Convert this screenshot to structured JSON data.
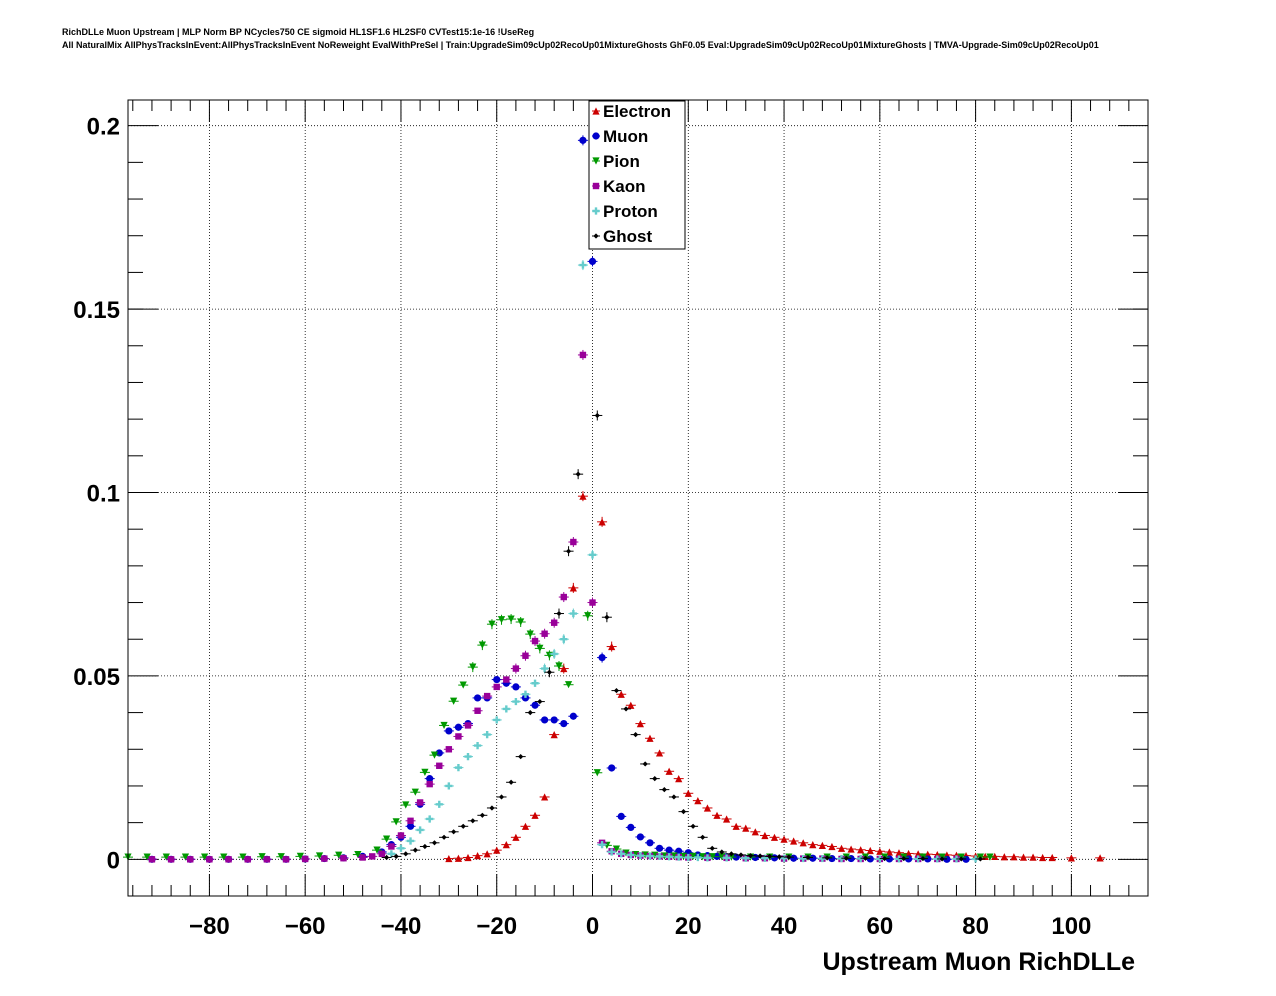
{
  "header": {
    "title_line1": "RichDLLe Muon Upstream | MLP Norm BP NCycles750 CE sigmoid HL1SF1.6 HL2SF0 CVTest15:1e-16 !UseReg",
    "title_line2": "All NaturalMix AllPhysTracksInEvent:AllPhysTracksInEvent NoReweight EvalWithPreSel | Train:UpgradeSim09cUp02RecoUp01MixtureGhosts GhF0.05 Eval:UpgradeSim09cUp02RecoUp01MixtureGhosts | TMVA-Upgrade-Sim09cUp02RecoUp01"
  },
  "chart_data": {
    "type": "scatter",
    "title": "RichDLLe Muon Upstream",
    "xlabel": "Upstream Muon RichDLLe",
    "ylabel": "",
    "xlim": [
      -97,
      116
    ],
    "ylim": [
      -0.01,
      0.207
    ],
    "grid": true,
    "legend_position": "top-center",
    "x_ticks": [
      -80,
      -60,
      -40,
      -20,
      0,
      20,
      40,
      60,
      80,
      100
    ],
    "x_tick_labels": [
      "−80",
      "−60",
      "−40",
      "−20",
      "0",
      "20",
      "40",
      "60",
      "80",
      "100"
    ],
    "y_ticks": [
      0,
      0.05,
      0.1,
      0.15,
      0.2
    ],
    "y_tick_labels": [
      "0",
      "0.05",
      "0.1",
      "0.15",
      "0.2"
    ],
    "series": [
      {
        "name": "Electron",
        "color": "#cc0000",
        "marker": "triangle-up",
        "x": [
          -30,
          -28,
          -26,
          -24,
          -22,
          -20,
          -18,
          -16,
          -14,
          -12,
          -10,
          -8,
          -6,
          -4,
          -2,
          2,
          4,
          6,
          8,
          10,
          12,
          14,
          16,
          18,
          20,
          22,
          24,
          26,
          28,
          30,
          32,
          34,
          36,
          38,
          40,
          42,
          44,
          46,
          48,
          50,
          52,
          54,
          56,
          58,
          60,
          62,
          64,
          66,
          68,
          70,
          72,
          74,
          76,
          78,
          80,
          82,
          84,
          86,
          88,
          90,
          92,
          94,
          96,
          100,
          106
        ],
        "y": [
          0.0002,
          0.0003,
          0.0005,
          0.001,
          0.0015,
          0.0025,
          0.004,
          0.006,
          0.009,
          0.012,
          0.017,
          0.034,
          0.052,
          0.074,
          0.099,
          0.092,
          0.058,
          0.045,
          0.042,
          0.037,
          0.033,
          0.029,
          0.024,
          0.022,
          0.018,
          0.016,
          0.014,
          0.012,
          0.011,
          0.009,
          0.0085,
          0.0075,
          0.0065,
          0.006,
          0.0055,
          0.005,
          0.0045,
          0.004,
          0.0038,
          0.0035,
          0.003,
          0.0028,
          0.0026,
          0.0024,
          0.0022,
          0.002,
          0.0018,
          0.0016,
          0.0015,
          0.0014,
          0.0013,
          0.0012,
          0.0011,
          0.001,
          0.0009,
          0.0008,
          0.0008,
          0.0007,
          0.0007,
          0.0006,
          0.0006,
          0.0005,
          0.0005,
          0.0004,
          0.0004
        ]
      },
      {
        "name": "Muon",
        "color": "#0000cc",
        "marker": "circle",
        "x": [
          -92,
          -88,
          -84,
          -80,
          -76,
          -72,
          -68,
          -64,
          -60,
          -56,
          -52,
          -48,
          -44,
          -42,
          -40,
          -38,
          -36,
          -34,
          -32,
          -30,
          -28,
          -26,
          -24,
          -22,
          -20,
          -18,
          -16,
          -14,
          -12,
          -10,
          -8,
          -6,
          -4,
          -2,
          0,
          2,
          4,
          6,
          8,
          10,
          12,
          14,
          16,
          18,
          20,
          22,
          24,
          26,
          28,
          30,
          34,
          38,
          42,
          46,
          50,
          54,
          58,
          62,
          66,
          70,
          74,
          78
        ],
        "y": [
          0,
          0,
          0,
          0,
          0,
          0,
          0,
          0,
          0.0001,
          0.0002,
          0.0004,
          0.0008,
          0.002,
          0.004,
          0.006,
          0.009,
          0.015,
          0.022,
          0.029,
          0.035,
          0.036,
          0.037,
          0.044,
          0.044,
          0.049,
          0.048,
          0.047,
          0.044,
          0.042,
          0.038,
          0.038,
          0.037,
          0.039,
          0.196,
          0.163,
          0.055,
          0.0249,
          0.0117,
          0.0087,
          0.0061,
          0.0045,
          0.003,
          0.0025,
          0.0022,
          0.0018,
          0.0012,
          0.001,
          0.0008,
          0.0007,
          0.0006,
          0.0005,
          0.0004,
          0.0003,
          0.0003,
          0.0002,
          0.0002,
          0.0001,
          0.0001,
          0.0001,
          0.0001,
          0,
          0
        ]
      },
      {
        "name": "Pion",
        "color": "#009900",
        "marker": "triangle-down",
        "x": [
          -97,
          -93,
          -89,
          -85,
          -81,
          -77,
          -73,
          -69,
          -65,
          -61,
          -57,
          -53,
          -49,
          -45,
          -43,
          -41,
          -39,
          -37,
          -35,
          -33,
          -31,
          -29,
          -27,
          -25,
          -23,
          -21,
          -19,
          -17,
          -15,
          -13,
          -11,
          -9,
          -7,
          -5,
          -1,
          1,
          3,
          5,
          7,
          9,
          11,
          13,
          15,
          17,
          19,
          21,
          23,
          25,
          27,
          29,
          33,
          37,
          41,
          45,
          49,
          53,
          57,
          61,
          65,
          69,
          73,
          77,
          81,
          83
        ],
        "y": [
          0.0006,
          0.0006,
          0.0006,
          0.0006,
          0.0006,
          0.0006,
          0.0006,
          0.0007,
          0.0007,
          0.0008,
          0.0009,
          0.0011,
          0.0013,
          0.0025,
          0.0055,
          0.0102,
          0.0148,
          0.0183,
          0.0237,
          0.0284,
          0.0365,
          0.0431,
          0.0475,
          0.0524,
          0.0584,
          0.0641,
          0.0653,
          0.0655,
          0.0647,
          0.0614,
          0.0575,
          0.0556,
          0.0527,
          0.0476,
          0.0664,
          0.0236,
          0.0038,
          0.0028,
          0.0017,
          0.0013,
          0.0012,
          0.0011,
          0.0009,
          0.0009,
          0.0008,
          0.0008,
          0.0007,
          0.0007,
          0.0007,
          0.0006,
          0.0006,
          0.0006,
          0.0006,
          0.0006,
          0.0006,
          0.0006,
          0.0006,
          0.0006,
          0.0006,
          0.0006,
          0.0006,
          0.0006,
          0.0006,
          0.0006
        ]
      },
      {
        "name": "Kaon",
        "color": "#990099",
        "marker": "square",
        "x": [
          -92,
          -88,
          -84,
          -80,
          -76,
          -72,
          -68,
          -64,
          -60,
          -56,
          -52,
          -48,
          -46,
          -44,
          -42,
          -40,
          -38,
          -36,
          -34,
          -32,
          -30,
          -28,
          -26,
          -24,
          -22,
          -20,
          -18,
          -16,
          -14,
          -12,
          -10,
          -8,
          -6,
          -4,
          -2,
          0,
          2,
          4,
          6,
          8,
          10,
          12,
          14,
          16,
          18,
          20,
          24,
          28,
          32,
          36,
          40,
          44,
          48,
          52,
          56,
          60,
          64,
          68,
          72,
          76
        ],
        "y": [
          0,
          0,
          0,
          0,
          0,
          0,
          0,
          0,
          0.0001,
          0.0002,
          0.0003,
          0.0005,
          0.0008,
          0.0015,
          0.0035,
          0.0065,
          0.0105,
          0.0155,
          0.0205,
          0.0255,
          0.03,
          0.0335,
          0.0365,
          0.0405,
          0.0445,
          0.047,
          0.049,
          0.052,
          0.0555,
          0.0595,
          0.0615,
          0.0645,
          0.0715,
          0.0865,
          0.1375,
          0.07,
          0.0045,
          0.0022,
          0.0015,
          0.0012,
          0.001,
          0.0009,
          0.0008,
          0.0007,
          0.0006,
          0.0005,
          0.0004,
          0.0004,
          0.0003,
          0.0003,
          0.0002,
          0.0002,
          0.0002,
          0.0001,
          0.0001,
          0.0001,
          0.0001,
          0.0001,
          0.0001,
          0.0001
        ]
      },
      {
        "name": "Proton",
        "color": "#66cccc",
        "marker": "cross",
        "x": [
          -42,
          -40,
          -38,
          -36,
          -34,
          -32,
          -30,
          -28,
          -26,
          -24,
          -22,
          -20,
          -18,
          -16,
          -14,
          -12,
          -10,
          -8,
          -6,
          -4,
          -2,
          0,
          2,
          4,
          6,
          8,
          10,
          12,
          14,
          16,
          18,
          20,
          22,
          24,
          28,
          32,
          36,
          40,
          44,
          48,
          52,
          56,
          60,
          64,
          68,
          72,
          76,
          80
        ],
        "y": [
          0.0015,
          0.003,
          0.005,
          0.008,
          0.011,
          0.015,
          0.02,
          0.025,
          0.028,
          0.031,
          0.034,
          0.038,
          0.041,
          0.043,
          0.045,
          0.048,
          0.052,
          0.056,
          0.06,
          0.067,
          0.162,
          0.083,
          0.004,
          0.002,
          0.0015,
          0.0012,
          0.001,
          0.0009,
          0.0008,
          0.0007,
          0.0006,
          0.0005,
          0.0005,
          0.0004,
          0.0004,
          0.0003,
          0.0003,
          0.0003,
          0.0002,
          0.0002,
          0.0002,
          0.0002,
          0.0001,
          0.0001,
          0.0001,
          0.0001,
          0.0001,
          0.0001
        ]
      },
      {
        "name": "Ghost",
        "color": "#000000",
        "marker": "diamond",
        "x": [
          -43,
          -41,
          -39,
          -37,
          -35,
          -33,
          -31,
          -29,
          -27,
          -25,
          -23,
          -21,
          -19,
          -17,
          -15,
          -13,
          -11,
          -9,
          -7,
          -5,
          -3,
          1,
          3,
          5,
          7,
          9,
          11,
          13,
          15,
          17,
          19,
          21,
          23,
          25,
          27,
          29,
          31,
          33,
          35,
          37,
          39,
          41,
          45,
          49,
          53,
          57,
          61,
          65,
          69,
          73,
          77,
          81
        ],
        "y": [
          0.0005,
          0.0008,
          0.0015,
          0.0025,
          0.0035,
          0.0045,
          0.006,
          0.0075,
          0.009,
          0.0105,
          0.012,
          0.014,
          0.017,
          0.021,
          0.028,
          0.04,
          0.043,
          0.051,
          0.067,
          0.084,
          0.105,
          0.121,
          0.066,
          0.046,
          0.041,
          0.034,
          0.026,
          0.022,
          0.019,
          0.017,
          0.013,
          0.009,
          0.006,
          0.003,
          0.002,
          0.0015,
          0.0012,
          0.001,
          0.0009,
          0.0008,
          0.0007,
          0.0006,
          0.0005,
          0.0004,
          0.0003,
          0.0003,
          0.0002,
          0.0002,
          0.0002,
          0.0001,
          0.0001,
          0.0001
        ]
      }
    ]
  }
}
